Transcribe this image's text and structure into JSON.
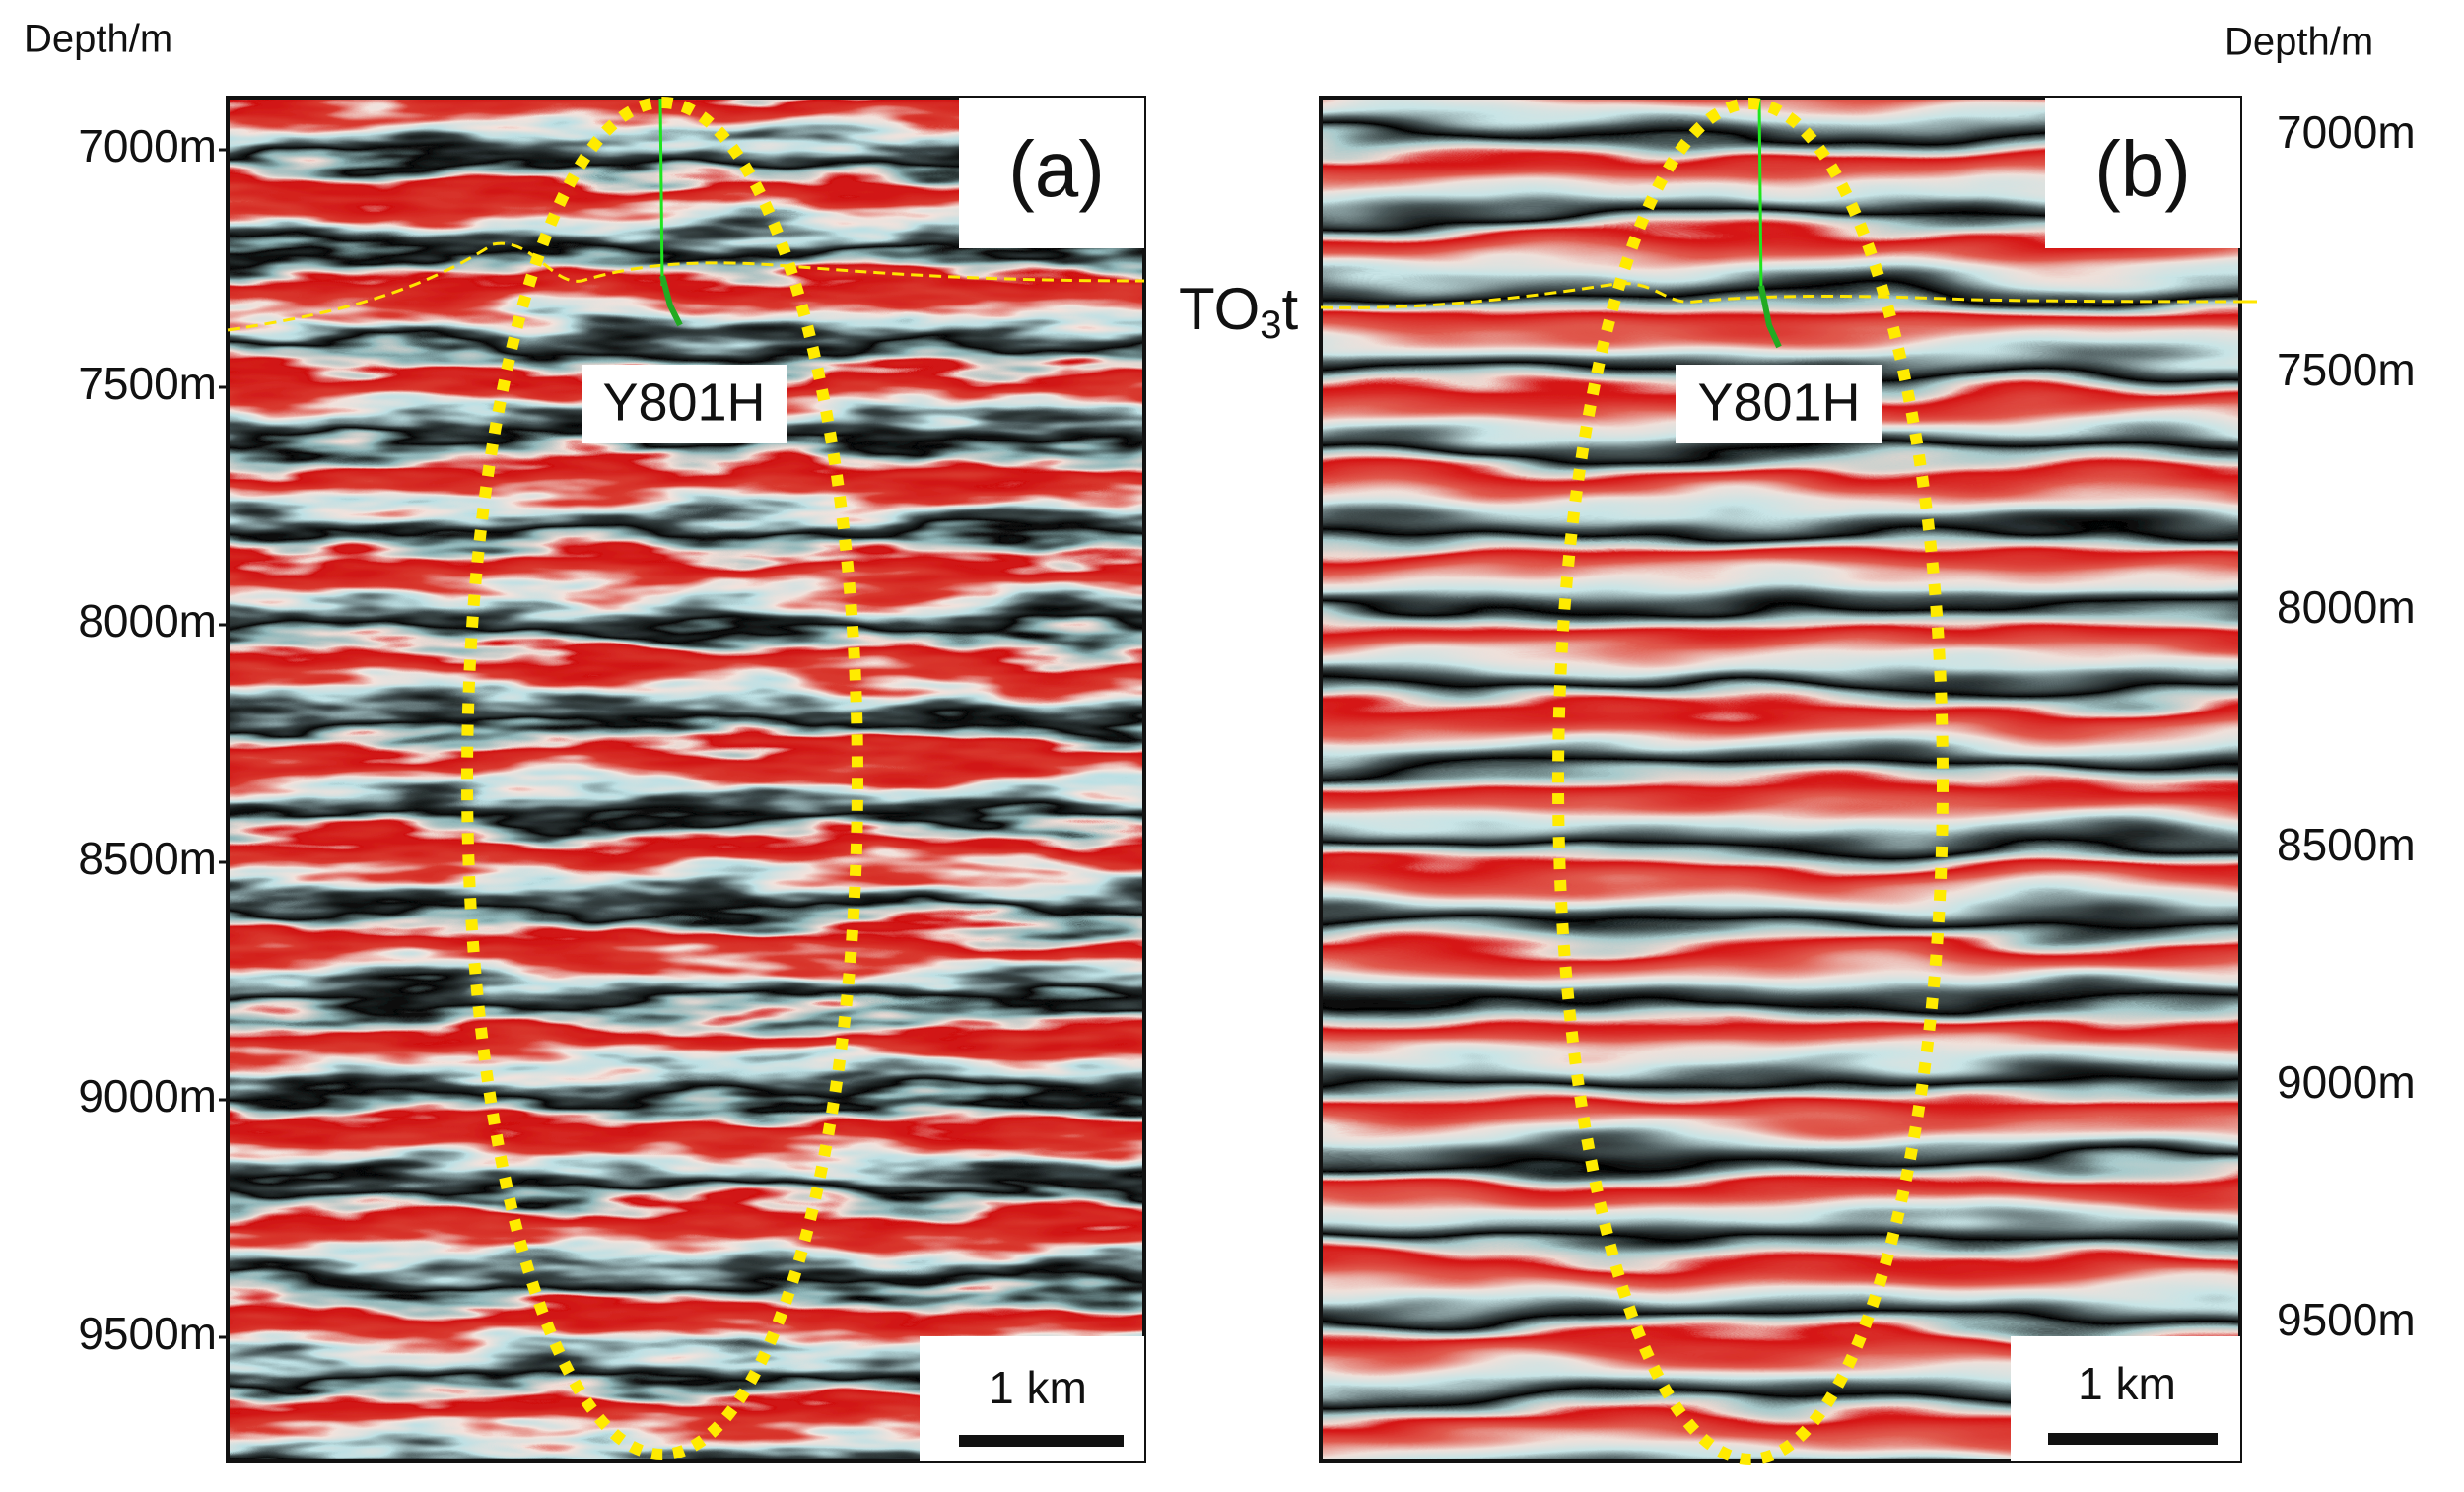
{
  "axis_title_left": "Depth/m",
  "axis_title_right": "Depth/m",
  "left_ticks": [
    "7000m",
    "7500m",
    "8000m",
    "8500m",
    "9000m",
    "9500m"
  ],
  "right_ticks": [
    "7000m",
    "7500m",
    "8000m",
    "8500m",
    "9000m",
    "9500m"
  ],
  "panels": [
    {
      "label": "(a)",
      "well": "Y801H",
      "scale": "1 km"
    },
    {
      "label": "(b)",
      "well": "Y801H",
      "scale": "1 km"
    }
  ],
  "horizon": {
    "main": "TO",
    "sub": "3",
    "tail": "t"
  }
}
